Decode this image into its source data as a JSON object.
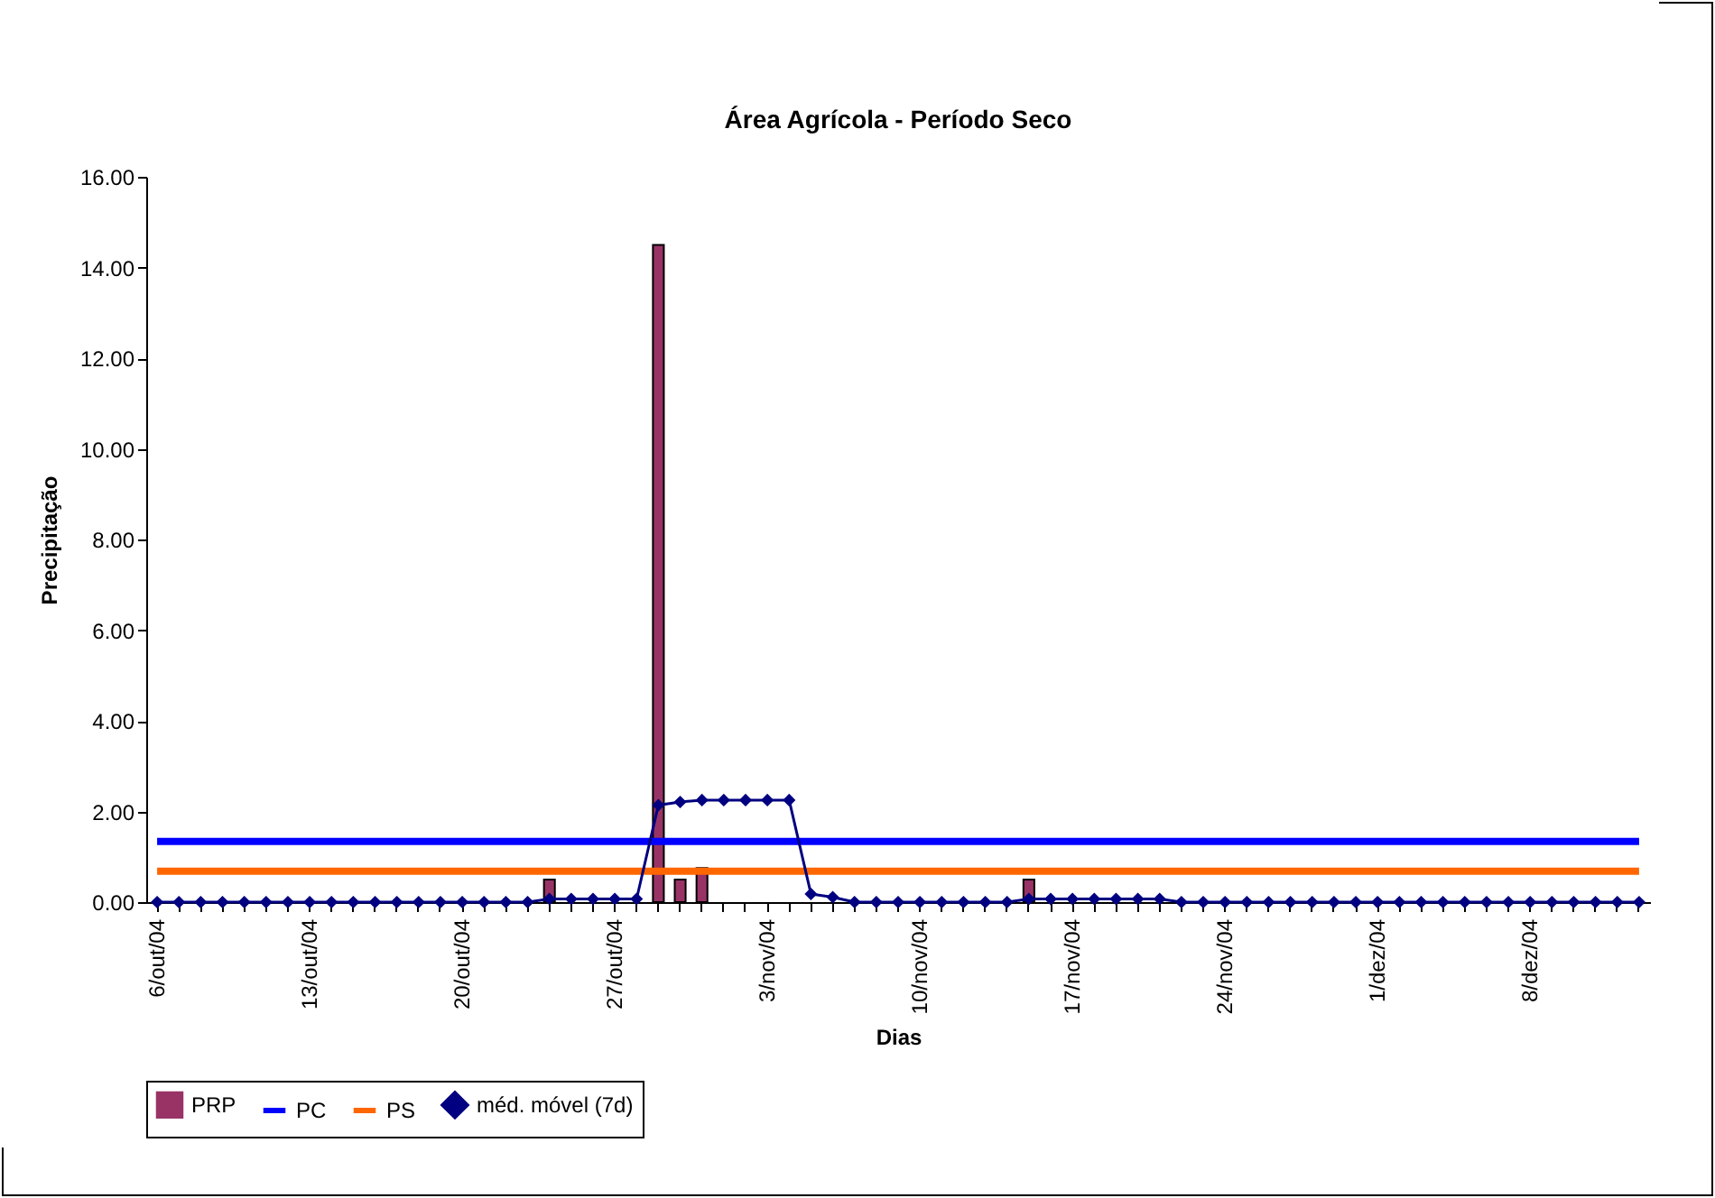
{
  "chart_data": {
    "type": "bar",
    "title": "Área Agrícola - Período Seco",
    "xlabel": "Dias",
    "ylabel": "Precipitação",
    "categories": [
      "6/out/04",
      null,
      null,
      null,
      null,
      null,
      null,
      "13/out/04",
      null,
      null,
      null,
      null,
      null,
      null,
      "20/out/04",
      null,
      null,
      null,
      null,
      null,
      null,
      "27/out/04",
      null,
      null,
      null,
      null,
      null,
      null,
      "3/nov/04",
      null,
      null,
      null,
      null,
      null,
      null,
      "10/nov/04",
      null,
      null,
      null,
      null,
      null,
      null,
      "17/nov/04",
      null,
      null,
      null,
      null,
      null,
      null,
      "24/nov/04",
      null,
      null,
      null,
      null,
      null,
      null,
      "1/dez/04",
      null,
      null,
      null,
      null,
      null,
      null,
      "8/dez/04",
      null,
      null,
      null,
      null,
      null
    ],
    "series": [
      {
        "name": "PRP",
        "color": "#993366",
        "values": [
          0,
          0,
          0,
          0,
          0,
          0,
          0,
          0,
          0,
          0,
          0,
          0,
          0,
          0,
          0,
          0,
          0,
          0,
          0.5,
          0,
          0,
          0,
          0,
          14.5,
          0.5,
          0.75,
          0,
          0,
          0,
          0,
          0,
          0,
          0,
          0,
          0,
          0,
          0,
          0,
          0,
          0,
          0.5,
          0,
          0,
          0,
          0,
          0,
          0,
          0,
          0,
          0,
          0,
          0,
          0,
          0,
          0,
          0,
          0,
          0,
          0,
          0,
          0,
          0,
          0,
          0,
          0,
          0,
          0,
          0,
          0
        ]
      },
      {
        "name": "PC",
        "type": "line",
        "color": "#0000ff",
        "marker": "none",
        "values": [
          1.34,
          1.34,
          1.34,
          1.34,
          1.34,
          1.34,
          1.34,
          1.34,
          1.34,
          1.34,
          1.34,
          1.34,
          1.34,
          1.34,
          1.34,
          1.34,
          1.34,
          1.34,
          1.34,
          1.34,
          1.34,
          1.34,
          1.34,
          1.34,
          1.34,
          1.34,
          1.34,
          1.34,
          1.34,
          1.34,
          1.34,
          1.34,
          1.34,
          1.34,
          1.34,
          1.34,
          1.34,
          1.34,
          1.34,
          1.34,
          1.34,
          1.34,
          1.34,
          1.34,
          1.34,
          1.34,
          1.34,
          1.34,
          1.34,
          1.34,
          1.34,
          1.34,
          1.34,
          1.34,
          1.34,
          1.34,
          1.34,
          1.34,
          1.34,
          1.34,
          1.34,
          1.34,
          1.34,
          1.34,
          1.34,
          1.34,
          1.34,
          1.34,
          1.34
        ]
      },
      {
        "name": "PS",
        "type": "line",
        "color": "#ff6600",
        "marker": "none",
        "values": [
          0.68,
          0.68,
          0.68,
          0.68,
          0.68,
          0.68,
          0.68,
          0.68,
          0.68,
          0.68,
          0.68,
          0.68,
          0.68,
          0.68,
          0.68,
          0.68,
          0.68,
          0.68,
          0.68,
          0.68,
          0.68,
          0.68,
          0.68,
          0.68,
          0.68,
          0.68,
          0.68,
          0.68,
          0.68,
          0.68,
          0.68,
          0.68,
          0.68,
          0.68,
          0.68,
          0.68,
          0.68,
          0.68,
          0.68,
          0.68,
          0.68,
          0.68,
          0.68,
          0.68,
          0.68,
          0.68,
          0.68,
          0.68,
          0.68,
          0.68,
          0.68,
          0.68,
          0.68,
          0.68,
          0.68,
          0.68,
          0.68,
          0.68,
          0.68,
          0.68,
          0.68,
          0.68,
          0.68,
          0.68,
          0.68,
          0.68,
          0.68,
          0.68,
          0.68
        ]
      },
      {
        "name": "méd. móvel (7d)",
        "type": "line",
        "color": "#000080",
        "marker": "diamond",
        "values": [
          0,
          0,
          0,
          0,
          0,
          0,
          0,
          0,
          0,
          0,
          0,
          0,
          0,
          0,
          0,
          0,
          0,
          0,
          0.07,
          0.07,
          0.07,
          0.07,
          0.07,
          2.14,
          2.21,
          2.25,
          2.25,
          2.25,
          2.25,
          2.25,
          0.18,
          0.11,
          0,
          0,
          0,
          0,
          0,
          0,
          0,
          0,
          0.07,
          0.07,
          0.07,
          0.07,
          0.07,
          0.07,
          0.07,
          0,
          0,
          0,
          0,
          0,
          0,
          0,
          0,
          0,
          0,
          0,
          0,
          0,
          0,
          0,
          0,
          0,
          0,
          0,
          0,
          0,
          0
        ]
      }
    ],
    "ylim": [
      0,
      16
    ],
    "yticks": [
      {
        "value": 0,
        "label": "0.00"
      },
      {
        "value": 2,
        "label": "2.00"
      },
      {
        "value": 4,
        "label": "4.00"
      },
      {
        "value": 6,
        "label": "6.00"
      },
      {
        "value": 8,
        "label": "8.00"
      },
      {
        "value": 10,
        "label": "10.00"
      },
      {
        "value": 12,
        "label": "12.00"
      },
      {
        "value": 14,
        "label": "14.00"
      },
      {
        "value": 16,
        "label": "16.00"
      }
    ],
    "grid": false,
    "legend": "bottom",
    "line_style": "solid"
  }
}
